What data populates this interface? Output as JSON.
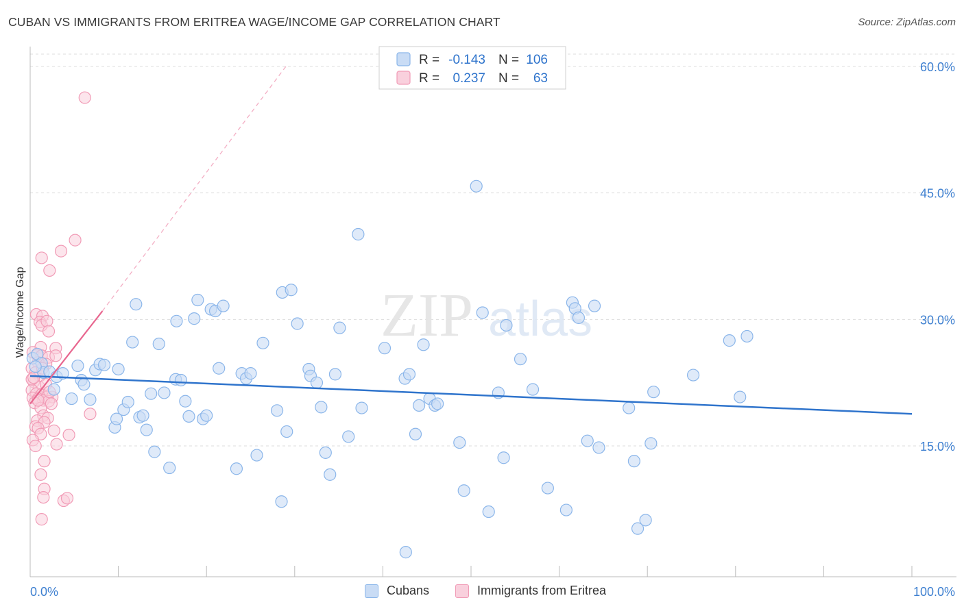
{
  "title": "CUBAN VS IMMIGRANTS FROM ERITREA WAGE/INCOME GAP CORRELATION CHART",
  "source": "Source: ZipAtlas.com",
  "watermark": {
    "part1": "ZIP",
    "part2": "atlas"
  },
  "colors": {
    "blue": "#8bb6ea",
    "blue_fill": "#c9dcf5",
    "blue_line": "#2f74cc",
    "pink": "#f19bb6",
    "pink_fill": "#f9d0dd",
    "pink_line": "#e8668f",
    "axis_text": "#3d7fd0",
    "grid": "#dddddd"
  },
  "legend_stats": [
    {
      "r_label": "R =",
      "r_value": "-0.143",
      "n_label": "N =",
      "n_value": "106",
      "series": "blue"
    },
    {
      "r_label": "R =",
      "r_value": "0.237",
      "n_label": "N =",
      "n_value": "63",
      "series": "pink"
    }
  ],
  "chart_data": {
    "type": "scatter",
    "title": "CUBAN VS IMMIGRANTS FROM ERITREA WAGE/INCOME GAP CORRELATION CHART",
    "xlabel": "",
    "ylabel": "Wage/Income Gap",
    "xlim": [
      0,
      100
    ],
    "ylim": [
      0,
      62
    ],
    "x_tick_labels": [
      "0.0%",
      "100.0%"
    ],
    "y_ticks": [
      15,
      30,
      45,
      60
    ],
    "y_tick_labels": [
      "15.0%",
      "30.0%",
      "45.0%",
      "60.0%"
    ],
    "grid": true,
    "legend_position": "bottom",
    "series": [
      {
        "name": "Cubans",
        "color": "#8bb6ea",
        "trend": {
          "x": [
            0,
            100
          ],
          "y": [
            23.3,
            18.8
          ]
        },
        "points": [
          [
            0.3,
            25.4
          ],
          [
            0.8,
            25.9
          ],
          [
            1.3,
            24.8
          ],
          [
            1.5,
            23.7
          ],
          [
            2.2,
            23.8
          ],
          [
            2.7,
            21.7
          ],
          [
            3.0,
            23.2
          ],
          [
            3.7,
            23.6
          ],
          [
            4.7,
            20.6
          ],
          [
            5.4,
            24.5
          ],
          [
            5.8,
            22.8
          ],
          [
            6.1,
            22.3
          ],
          [
            6.8,
            20.5
          ],
          [
            7.4,
            24.0
          ],
          [
            7.9,
            24.7
          ],
          [
            8.4,
            24.6
          ],
          [
            9.6,
            17.2
          ],
          [
            9.8,
            18.2
          ],
          [
            10.0,
            24.1
          ],
          [
            10.6,
            19.3
          ],
          [
            11.1,
            20.2
          ],
          [
            11.6,
            27.3
          ],
          [
            12.0,
            31.8
          ],
          [
            12.4,
            18.4
          ],
          [
            12.8,
            18.6
          ],
          [
            13.2,
            16.9
          ],
          [
            13.7,
            21.2
          ],
          [
            14.1,
            14.3
          ],
          [
            14.6,
            27.1
          ],
          [
            15.2,
            21.3
          ],
          [
            15.8,
            12.4
          ],
          [
            16.5,
            22.9
          ],
          [
            16.6,
            29.8
          ],
          [
            17.1,
            22.8
          ],
          [
            17.6,
            20.3
          ],
          [
            18.0,
            18.5
          ],
          [
            18.6,
            30.1
          ],
          [
            19.0,
            32.3
          ],
          [
            19.6,
            18.2
          ],
          [
            20.0,
            18.6
          ],
          [
            20.5,
            31.2
          ],
          [
            21.0,
            31.0
          ],
          [
            21.4,
            24.2
          ],
          [
            21.9,
            31.6
          ],
          [
            23.4,
            12.3
          ],
          [
            24.0,
            23.6
          ],
          [
            24.5,
            23.0
          ],
          [
            25.0,
            23.6
          ],
          [
            25.7,
            13.9
          ],
          [
            26.4,
            27.2
          ],
          [
            28.0,
            19.2
          ],
          [
            28.5,
            8.4
          ],
          [
            28.6,
            33.2
          ],
          [
            29.1,
            16.7
          ],
          [
            29.6,
            33.5
          ],
          [
            30.3,
            29.5
          ],
          [
            31.6,
            24.1
          ],
          [
            31.8,
            23.3
          ],
          [
            32.5,
            22.5
          ],
          [
            33.0,
            19.6
          ],
          [
            33.5,
            14.2
          ],
          [
            34.0,
            11.6
          ],
          [
            34.6,
            23.5
          ],
          [
            35.1,
            29.0
          ],
          [
            36.1,
            16.1
          ],
          [
            37.2,
            40.1
          ],
          [
            37.6,
            19.5
          ],
          [
            40.2,
            26.6
          ],
          [
            42.5,
            23.0
          ],
          [
            42.6,
            2.4
          ],
          [
            43.0,
            23.5
          ],
          [
            43.7,
            16.4
          ],
          [
            44.1,
            19.8
          ],
          [
            44.6,
            27.0
          ],
          [
            45.3,
            20.6
          ],
          [
            45.9,
            19.8
          ],
          [
            46.2,
            20.0
          ],
          [
            48.7,
            15.4
          ],
          [
            49.2,
            9.7
          ],
          [
            50.6,
            45.8
          ],
          [
            51.3,
            30.8
          ],
          [
            52.0,
            7.2
          ],
          [
            53.1,
            21.3
          ],
          [
            53.7,
            13.6
          ],
          [
            54.0,
            29.3
          ],
          [
            55.6,
            25.3
          ],
          [
            57.0,
            21.7
          ],
          [
            58.7,
            10.0
          ],
          [
            60.8,
            7.4
          ],
          [
            61.5,
            32.0
          ],
          [
            61.8,
            31.3
          ],
          [
            62.2,
            30.2
          ],
          [
            63.2,
            15.6
          ],
          [
            64.0,
            31.6
          ],
          [
            64.5,
            14.8
          ],
          [
            67.9,
            19.5
          ],
          [
            68.5,
            13.2
          ],
          [
            68.9,
            5.2
          ],
          [
            69.8,
            6.2
          ],
          [
            70.4,
            15.3
          ],
          [
            70.7,
            21.4
          ],
          [
            75.2,
            23.4
          ],
          [
            79.3,
            27.5
          ],
          [
            80.5,
            20.8
          ],
          [
            81.3,
            28.0
          ],
          [
            0.6,
            24.4
          ]
        ]
      },
      {
        "name": "Immigrants from Eritrea",
        "color": "#f19bb6",
        "trend": {
          "x": [
            0,
            8.2
          ],
          "y": [
            20.0,
            31.0
          ]
        },
        "trend_dashed": {
          "x": [
            8.2,
            29.0
          ],
          "y": [
            31.0,
            60.0
          ]
        },
        "points": [
          [
            6.2,
            56.3
          ],
          [
            5.1,
            39.4
          ],
          [
            3.5,
            38.1
          ],
          [
            1.3,
            37.3
          ],
          [
            2.2,
            35.8
          ],
          [
            0.7,
            30.6
          ],
          [
            1.4,
            30.4
          ],
          [
            1.1,
            29.7
          ],
          [
            1.3,
            29.3
          ],
          [
            1.9,
            29.8
          ],
          [
            2.1,
            28.6
          ],
          [
            2.9,
            26.6
          ],
          [
            1.2,
            26.7
          ],
          [
            0.3,
            26.1
          ],
          [
            0.8,
            25.8
          ],
          [
            1.3,
            25.7
          ],
          [
            2.1,
            25.5
          ],
          [
            2.9,
            25.7
          ],
          [
            0.9,
            24.9
          ],
          [
            1.8,
            24.7
          ],
          [
            0.2,
            24.2
          ],
          [
            0.6,
            23.7
          ],
          [
            1.1,
            23.3
          ],
          [
            0.4,
            22.6
          ],
          [
            1.0,
            22.0
          ],
          [
            0.2,
            21.6
          ],
          [
            0.7,
            21.2
          ],
          [
            1.3,
            21.1
          ],
          [
            1.9,
            20.8
          ],
          [
            2.5,
            20.8
          ],
          [
            0.3,
            20.7
          ],
          [
            0.9,
            20.6
          ],
          [
            1.5,
            20.4
          ],
          [
            2.1,
            20.3
          ],
          [
            0.5,
            20.1
          ],
          [
            2.4,
            20.0
          ],
          [
            1.2,
            19.5
          ],
          [
            1.5,
            18.6
          ],
          [
            2.0,
            18.3
          ],
          [
            0.8,
            18.0
          ],
          [
            6.8,
            18.8
          ],
          [
            1.6,
            17.8
          ],
          [
            0.6,
            17.3
          ],
          [
            0.9,
            17.1
          ],
          [
            2.7,
            16.8
          ],
          [
            1.2,
            16.4
          ],
          [
            4.4,
            16.3
          ],
          [
            0.3,
            15.7
          ],
          [
            3.0,
            15.2
          ],
          [
            0.6,
            15.0
          ],
          [
            1.6,
            13.2
          ],
          [
            1.2,
            11.6
          ],
          [
            1.6,
            9.9
          ],
          [
            1.5,
            8.9
          ],
          [
            3.8,
            8.5
          ],
          [
            4.2,
            8.8
          ],
          [
            1.3,
            6.3
          ],
          [
            0.2,
            22.9
          ],
          [
            1.8,
            22.3
          ],
          [
            0.4,
            23.1
          ],
          [
            2.2,
            21.4
          ],
          [
            0.9,
            20.4
          ],
          [
            1.4,
            24.2
          ]
        ]
      }
    ]
  },
  "bottom_legend": [
    {
      "label": "Cubans",
      "series": "blue"
    },
    {
      "label": "Immigrants from Eritrea",
      "series": "pink"
    }
  ]
}
